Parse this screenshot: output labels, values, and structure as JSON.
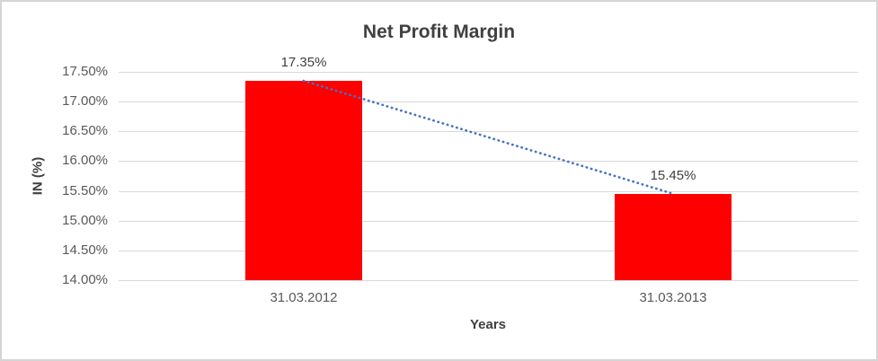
{
  "chart_data": {
    "type": "bar",
    "title": "Net Profit Margin",
    "categories": [
      "31.03.2012",
      "31.03.2013"
    ],
    "values": [
      17.35,
      15.45
    ],
    "data_labels": [
      "17.35%",
      "15.45%"
    ],
    "xlabel": "Years",
    "ylabel": "IN (%)",
    "ylim": [
      14.0,
      17.5
    ],
    "ytick_step": 0.5,
    "ytick_labels": [
      "14.00%",
      "14.50%",
      "15.00%",
      "15.50%",
      "16.00%",
      "16.50%",
      "17.00%",
      "17.50%"
    ],
    "grid": true,
    "legend": false,
    "bar_color": "#ff0000",
    "gridline_color": "#d9d9d9",
    "trendline": {
      "style": "dotted",
      "color": "#4472c4",
      "from_value": 17.35,
      "to_value": 15.45
    }
  }
}
